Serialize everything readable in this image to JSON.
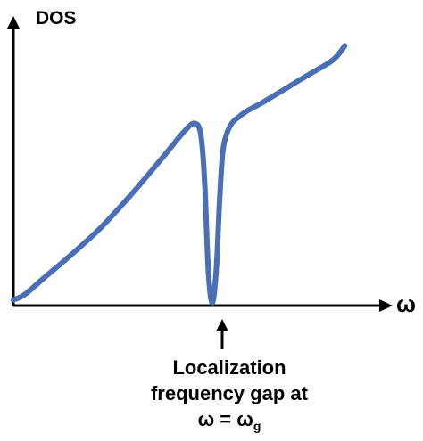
{
  "chart_data": {
    "type": "line",
    "title": "",
    "ylabel": "DOS",
    "xlabel": "ω",
    "ticks": false,
    "grid": false,
    "legend": "none",
    "series": [
      {
        "color": "#4a6fb5",
        "x": [
          0.0,
          0.03,
          0.08,
          0.14,
          0.22,
          0.3,
          0.38,
          0.44,
          0.465,
          0.48,
          0.49,
          0.5,
          0.51,
          0.52,
          0.528,
          0.536,
          0.545,
          0.56,
          0.58,
          0.6,
          0.64,
          0.7,
          0.76,
          0.82,
          0.85
        ],
        "y": [
          0.02,
          0.04,
          0.1,
          0.17,
          0.27,
          0.39,
          0.52,
          0.62,
          0.645,
          0.61,
          0.45,
          0.12,
          0.01,
          0.12,
          0.35,
          0.53,
          0.6,
          0.645,
          0.67,
          0.69,
          0.72,
          0.77,
          0.82,
          0.87,
          0.92
        ]
      }
    ],
    "annotation": {
      "x": 0.51,
      "lines": [
        "Localization",
        "frequency gap at"
      ],
      "equation_main": "ω = ω",
      "equation_sub": "g"
    }
  }
}
